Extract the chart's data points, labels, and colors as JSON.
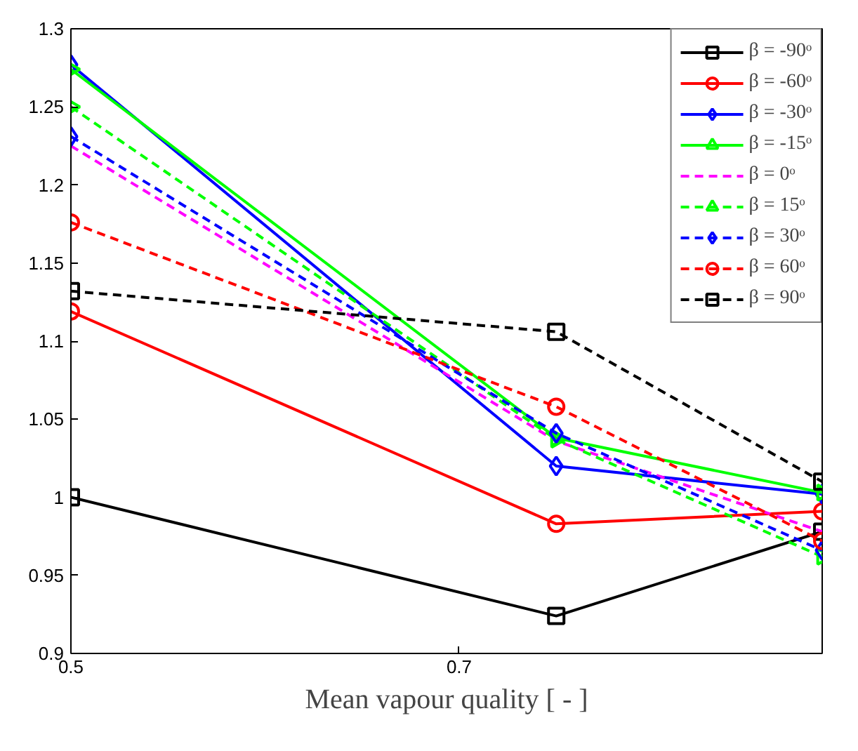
{
  "chart_data": {
    "type": "line",
    "xlabel": "Mean vapour quality [ - ]",
    "x": [
      0.5,
      0.75,
      0.887
    ],
    "xlim": [
      0.5,
      0.887
    ],
    "xticks": [
      0.5,
      0.7
    ],
    "ylim": [
      0.9,
      1.3
    ],
    "yticks": [
      0.9,
      0.95,
      1,
      1.05,
      1.1,
      1.15,
      1.2,
      1.25,
      1.3
    ],
    "grid": false,
    "legend": "right",
    "series": [
      {
        "name": "β = -90ᵒ",
        "color": "#000000",
        "marker": "square",
        "line_style": "solid",
        "values": [
          1.0,
          0.924,
          0.978
        ]
      },
      {
        "name": "β = -60ᵒ",
        "color": "#ff0000",
        "marker": "circle",
        "line_style": "solid",
        "values": [
          1.119,
          0.983,
          0.991
        ]
      },
      {
        "name": "β = -30ᵒ",
        "color": "#0000ff",
        "marker": "diamond",
        "line_style": "solid",
        "values": [
          1.277,
          1.02,
          1.002
        ]
      },
      {
        "name": "β = -15ᵒ",
        "color": "#00ff00",
        "marker": "triangle",
        "line_style": "solid",
        "values": [
          1.274,
          1.038,
          1.003
        ]
      },
      {
        "name": "β = 0ᵒ",
        "color": "#ff00ff",
        "marker": "none",
        "line_style": "dashed",
        "values": [
          1.225,
          1.036,
          0.978
        ]
      },
      {
        "name": "β = 15ᵒ",
        "color": "#00ff00",
        "marker": "triangle",
        "line_style": "dashed",
        "values": [
          1.25,
          1.037,
          0.962
        ]
      },
      {
        "name": "β = 30ᵒ",
        "color": "#0000ff",
        "marker": "diamond",
        "line_style": "dashed",
        "values": [
          1.231,
          1.041,
          0.966
        ]
      },
      {
        "name": "β = 60ᵒ",
        "color": "#ff0000",
        "marker": "circle",
        "line_style": "dashed",
        "values": [
          1.176,
          1.058,
          0.972
        ]
      },
      {
        "name": "β = 90ᵒ",
        "color": "#000000",
        "marker": "square",
        "line_style": "dashed",
        "values": [
          1.132,
          1.106,
          1.01
        ]
      }
    ]
  }
}
